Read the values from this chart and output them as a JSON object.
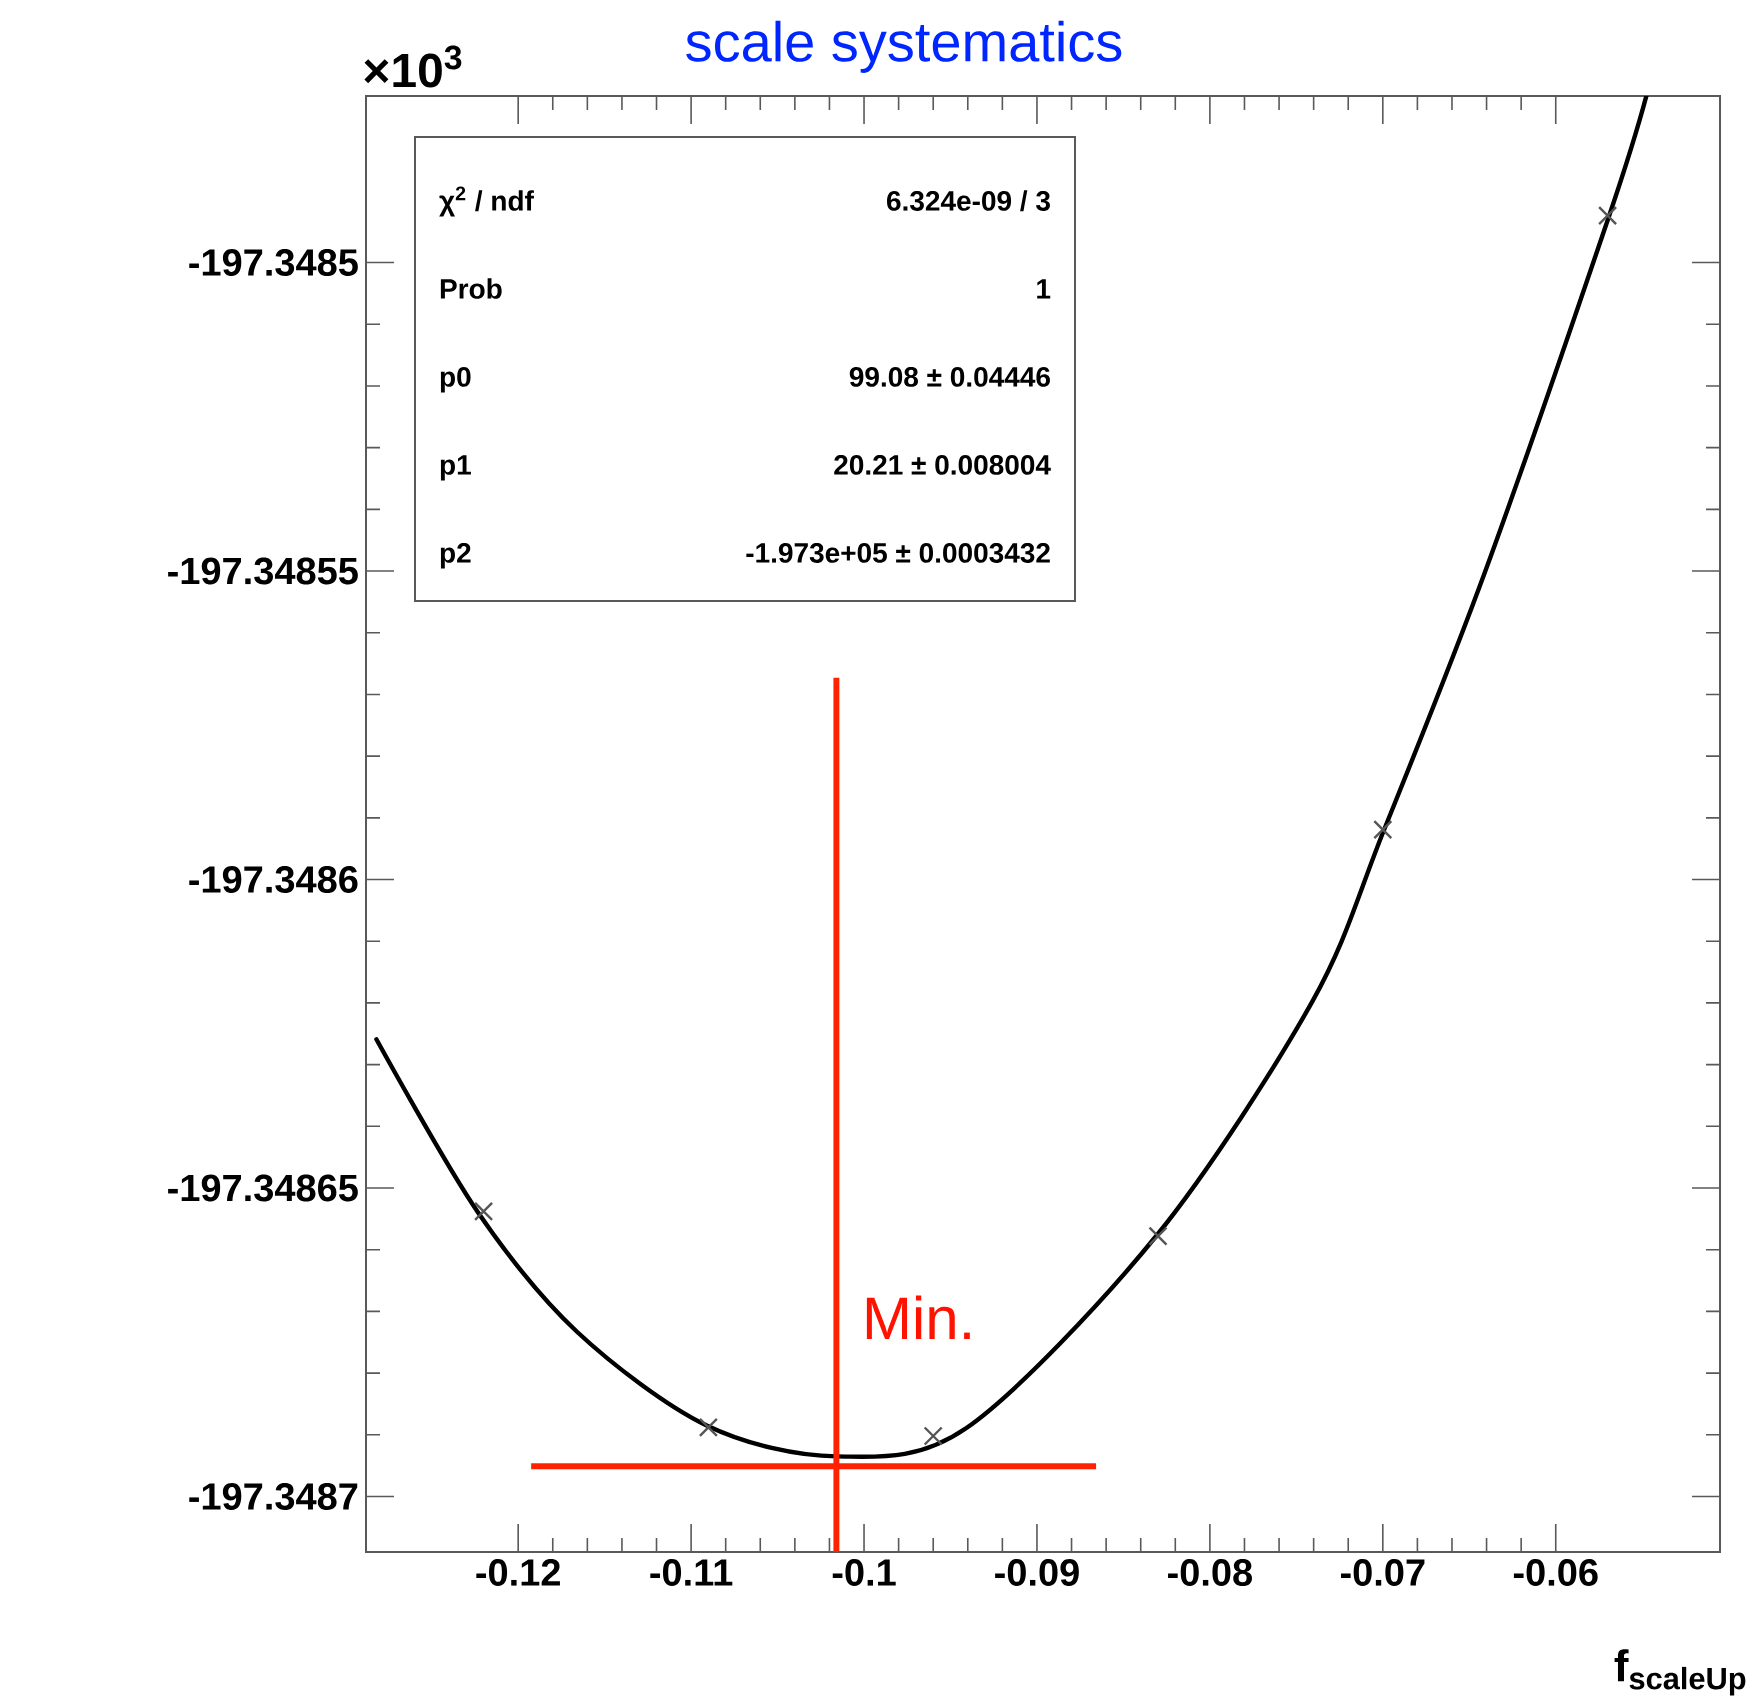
{
  "chart_data": {
    "type": "scatter",
    "title": "scale systematics",
    "xlabel": "f$_{scaleUp}$",
    "marker": "cross",
    "xlim": [
      -0.1288,
      -0.0505
    ],
    "xticks": [
      -0.12,
      -0.11,
      -0.1,
      -0.09,
      -0.08,
      -0.07,
      -0.06
    ],
    "ylim": [
      -197.348709,
      -197.348473
    ],
    "yticks": [
      -197.3487,
      -197.34865,
      -197.3486,
      -197.34855,
      -197.3485
    ],
    "grid": false,
    "annotations": [
      "×10$^{3}$",
      "χ$^{2}$ / ndf",
      "6.324e-09 / 3",
      "Prob",
      "1",
      "p0",
      "99.08 ± 0.04446",
      "p1",
      "20.21 ± 0.008004",
      "p2",
      "-1.973e+05 ± 0.0003432",
      "Min."
    ],
    "series": [
      {
        "color": "#555555",
        "x": [
          -0.122,
          -0.109,
          -0.096,
          -0.083,
          -0.07,
          -0.057
        ],
        "values": [
          -197.3486538,
          -197.3486888,
          -197.3486902,
          -197.3486578,
          -197.3485919,
          -197.3484924
        ]
      },
      {
        "type": "line",
        "color": "#000000",
        "marker": "none",
        "x": [
          -0.1282,
          -0.12236,
          -0.1166,
          -0.1091,
          -0.10158,
          -0.09408,
          -0.08308,
          -0.07408,
          -0.06992,
          -0.06407,
          -0.05691,
          -0.05475
        ],
        "values": [
          -197.3486259,
          -197.3486538,
          -197.3486733,
          -197.3486885,
          -197.3486935,
          -197.3486889,
          -197.3486577,
          -197.3486198,
          -197.3485919,
          -197.34855,
          -197.3484924,
          -197.3484729
        ]
      },
      {
        "type": "line",
        "color": "#ff2200",
        "marker": "none",
        "x": [
          -0.1016,
          -0.1016
        ],
        "values": [
          -197.3485673,
          -197.348709
        ]
      },
      {
        "type": "line",
        "color": "#ff2200",
        "marker": "none",
        "x": [
          -0.11925,
          -0.08658
        ],
        "values": [
          -197.3486951,
          -197.3486951
        ]
      }
    ]
  }
}
